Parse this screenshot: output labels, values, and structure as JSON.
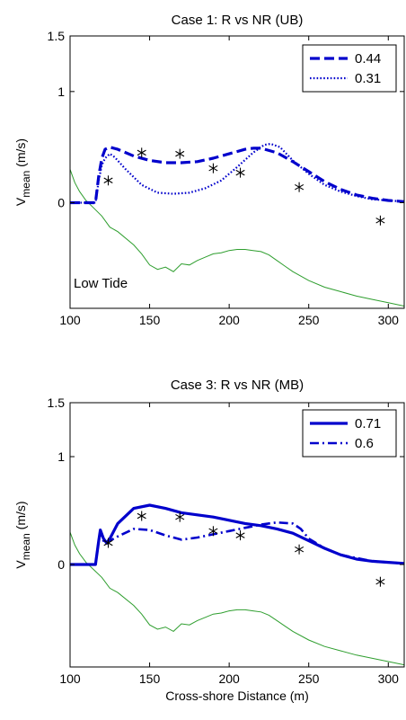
{
  "chart_data": [
    {
      "type": "line",
      "title": "Case 1: R vs NR (UB)",
      "xlabel": "",
      "ylabel_main": "V",
      "ylabel_sub": "mean",
      "ylabel_unit": " (m/s)",
      "xlim": [
        100,
        310
      ],
      "ylim": [
        -0.95,
        1.5
      ],
      "xticks": [
        100,
        150,
        200,
        250,
        300
      ],
      "yticks": [
        0,
        1,
        1.5
      ],
      "annotation": "Low Tide",
      "legend_position": "top-right",
      "series": [
        {
          "name": "0.44",
          "style": "dashed",
          "color": "#0000cc",
          "x": [
            100,
            116,
            118,
            120,
            122,
            125,
            130,
            140,
            150,
            160,
            170,
            180,
            190,
            200,
            210,
            215,
            220,
            230,
            240,
            250,
            260,
            270,
            280,
            290,
            300,
            310
          ],
          "y": [
            0,
            0,
            0.24,
            0.4,
            0.48,
            0.5,
            0.48,
            0.42,
            0.38,
            0.36,
            0.36,
            0.37,
            0.4,
            0.44,
            0.48,
            0.49,
            0.49,
            0.45,
            0.37,
            0.28,
            0.19,
            0.12,
            0.07,
            0.04,
            0.02,
            0.01
          ]
        },
        {
          "name": "0.31",
          "style": "dotted",
          "color": "#0000cc",
          "x": [
            100,
            116,
            118,
            120,
            122,
            125,
            128,
            135,
            145,
            155,
            165,
            175,
            185,
            195,
            205,
            215,
            222,
            226,
            232,
            240,
            250,
            260,
            270,
            280,
            290,
            300,
            310
          ],
          "y": [
            0,
            0,
            0.2,
            0.34,
            0.4,
            0.44,
            0.41,
            0.3,
            0.16,
            0.09,
            0.08,
            0.09,
            0.13,
            0.2,
            0.32,
            0.45,
            0.52,
            0.53,
            0.5,
            0.38,
            0.26,
            0.16,
            0.1,
            0.06,
            0.03,
            0.02,
            0.01
          ]
        }
      ],
      "observations": {
        "x": [
          124,
          145,
          169,
          190,
          207,
          244,
          295
        ],
        "y": [
          0.2,
          0.45,
          0.44,
          0.31,
          0.27,
          0.14,
          -0.16
        ]
      },
      "bathymetry": {
        "x": [
          100,
          103,
          106,
          110,
          115,
          120,
          125,
          130,
          140,
          145,
          150,
          155,
          160,
          165,
          170,
          175,
          180,
          185,
          190,
          195,
          200,
          205,
          210,
          215,
          220,
          225,
          230,
          235,
          240,
          250,
          260,
          270,
          280,
          290,
          300,
          310
        ],
        "y": [
          0.3,
          0.18,
          0.1,
          0.02,
          -0.05,
          -0.12,
          -0.22,
          -0.26,
          -0.38,
          -0.46,
          -0.56,
          -0.6,
          -0.58,
          -0.62,
          -0.55,
          -0.56,
          -0.52,
          -0.49,
          -0.46,
          -0.45,
          -0.43,
          -0.42,
          -0.42,
          -0.43,
          -0.44,
          -0.47,
          -0.52,
          -0.57,
          -0.62,
          -0.7,
          -0.76,
          -0.8,
          -0.84,
          -0.87,
          -0.9,
          -0.93
        ]
      }
    },
    {
      "type": "line",
      "title": "Case 3: R vs NR (MB)",
      "xlabel": "Cross-shore Distance (m)",
      "ylabel_main": "V",
      "ylabel_sub": "mean",
      "ylabel_unit": " (m/s)",
      "xlim": [
        100,
        310
      ],
      "ylim": [
        -0.95,
        1.5
      ],
      "xticks": [
        100,
        150,
        200,
        250,
        300
      ],
      "yticks": [
        0,
        1,
        1.5
      ],
      "annotation": "",
      "legend_position": "top-right",
      "series": [
        {
          "name": "0.71",
          "style": "solid",
          "color": "#0000cc",
          "x": [
            100,
            116,
            118,
            119,
            121,
            123,
            125,
            130,
            140,
            150,
            160,
            170,
            180,
            190,
            200,
            210,
            220,
            230,
            240,
            250,
            260,
            270,
            280,
            290,
            300,
            310
          ],
          "y": [
            0,
            0,
            0.22,
            0.32,
            0.24,
            0.2,
            0.24,
            0.38,
            0.52,
            0.55,
            0.52,
            0.48,
            0.46,
            0.44,
            0.41,
            0.38,
            0.36,
            0.33,
            0.29,
            0.22,
            0.15,
            0.09,
            0.05,
            0.03,
            0.02,
            0.01
          ]
        },
        {
          "name": "0.6",
          "style": "dashdot",
          "color": "#0000cc",
          "x": [
            100,
            116,
            118,
            119,
            121,
            123,
            125,
            130,
            140,
            150,
            160,
            170,
            180,
            190,
            200,
            210,
            220,
            230,
            240,
            245,
            250,
            260,
            270,
            280,
            290,
            300,
            310
          ],
          "y": [
            0,
            0,
            0.22,
            0.3,
            0.22,
            0.19,
            0.22,
            0.26,
            0.33,
            0.32,
            0.27,
            0.23,
            0.25,
            0.28,
            0.31,
            0.34,
            0.37,
            0.39,
            0.38,
            0.33,
            0.24,
            0.15,
            0.09,
            0.06,
            0.03,
            0.02,
            0.01
          ]
        }
      ],
      "observations": {
        "x": [
          124,
          145,
          169,
          190,
          207,
          244,
          295
        ],
        "y": [
          0.2,
          0.45,
          0.44,
          0.31,
          0.27,
          0.14,
          -0.16
        ]
      },
      "bathymetry": {
        "x": [
          100,
          103,
          106,
          110,
          115,
          120,
          125,
          130,
          140,
          145,
          150,
          155,
          160,
          165,
          170,
          175,
          180,
          185,
          190,
          195,
          200,
          205,
          210,
          215,
          220,
          225,
          230,
          235,
          240,
          250,
          260,
          270,
          280,
          290,
          300,
          310
        ],
        "y": [
          0.3,
          0.18,
          0.1,
          0.02,
          -0.05,
          -0.12,
          -0.22,
          -0.26,
          -0.38,
          -0.46,
          -0.56,
          -0.6,
          -0.58,
          -0.62,
          -0.55,
          -0.56,
          -0.52,
          -0.49,
          -0.46,
          -0.45,
          -0.43,
          -0.42,
          -0.42,
          -0.43,
          -0.44,
          -0.47,
          -0.52,
          -0.57,
          -0.62,
          -0.7,
          -0.76,
          -0.8,
          -0.84,
          -0.87,
          -0.9,
          -0.93
        ]
      }
    }
  ]
}
